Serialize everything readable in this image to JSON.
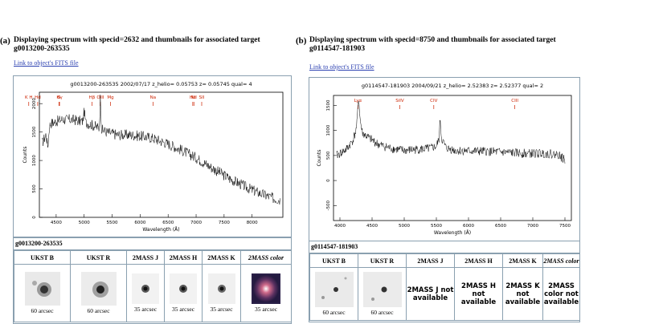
{
  "panels": [
    {
      "label": "(a)",
      "title_line1": "Displaying spectrum with specid=2632 and thumbnails for associated target",
      "title_line2": "g0013200-263535",
      "link": "Link to object's FITS file",
      "plot_header": "g0013200-263535 2002/07/17 z_helio= 0.05753 z= 0.05745 qual= 4",
      "target": "g0013200-263535",
      "line_marks": [
        "K H",
        "Hd",
        "G",
        "Hγ",
        "Hβ",
        "OIII",
        "Mg",
        "Na",
        "Hα",
        "NII",
        "SII"
      ],
      "y_ticks": [
        "0",
        "500",
        "1000",
        "1500",
        "2000"
      ],
      "x_ticks": [
        "4500",
        "5000",
        "5500",
        "6000",
        "6500",
        "7000",
        "7500",
        "8000"
      ],
      "ylabel": "Counts",
      "xlabel": "Wavelength (Å)",
      "thumb_headers": [
        "UKST B",
        "UKST R",
        "2MASS J",
        "2MASS H",
        "2MASS K",
        "2MASS color"
      ],
      "thumb_captions": [
        "60 arcsec",
        "60 arcsec",
        "35 arcsec",
        "35 arcsec",
        "35 arcsec",
        "35 arcsec"
      ]
    },
    {
      "label": "(b)",
      "title_line1": "Displaying spectrum with specid=8750 and thumbnails for associated target",
      "title_line2": "g0114547-181903",
      "link": "Link to object's FITS file",
      "plot_header": "g0114547-181903 2004/09/21 z_helio= 2.52383 z= 2.52377 qual= 2",
      "target": "g0114547-181903",
      "line_marks": [
        "Lyα",
        "SiIV",
        "CIV",
        "CIII"
      ],
      "y_ticks": [
        "-500",
        "0",
        "500",
        "1000",
        "1500"
      ],
      "x_ticks": [
        "4000",
        "4500",
        "5000",
        "5500",
        "6000",
        "6500",
        "7000",
        "7500"
      ],
      "ylabel": "Counts",
      "xlabel": "Wavelength (Å)",
      "thumb_headers": [
        "UKST B",
        "UKST R",
        "2MASS J",
        "2MASS H",
        "2MASS K",
        "2MASS color"
      ],
      "thumb_captions": [
        "60 arcsec",
        "60 arcsec"
      ],
      "not_available": [
        "2MASS J not available",
        "2MASS H not available",
        "2MASS K not available",
        "2MASS color not available"
      ]
    }
  ],
  "colors": {
    "axis_frame": "#8aa0b0",
    "line_marks": "#cc2200",
    "link": "#2a3fb0"
  },
  "chart_data": [
    {
      "type": "line",
      "title": "g0013200-263535 2002/07/17 z_helio= 0.05753 z= 0.05745 qual= 4",
      "xlabel": "Wavelength (Å)",
      "ylabel": "Counts",
      "xlim": [
        4200,
        8550
      ],
      "ylim": [
        0,
        2200
      ],
      "x": [
        4250,
        4400,
        4600,
        4800,
        5000,
        5200,
        5400,
        5600,
        5800,
        6000,
        6200,
        6400,
        6600,
        6800,
        7000,
        7200,
        7400,
        7600,
        7800,
        8000,
        8200,
        8400,
        8500
      ],
      "y": [
        1300,
        1650,
        1720,
        1720,
        1680,
        1600,
        1500,
        1450,
        1450,
        1430,
        1400,
        1330,
        1250,
        1150,
        1050,
        920,
        800,
        680,
        580,
        480,
        400,
        330,
        310
      ]
    },
    {
      "type": "line",
      "title": "g0114547-181903 2004/09/21 z_helio= 2.52383 z= 2.52377 qual= 2",
      "xlabel": "Wavelength (Å)",
      "ylabel": "Counts",
      "xlim": [
        3900,
        7600
      ],
      "ylim": [
        -800,
        1700
      ],
      "x": [
        3950,
        4100,
        4200,
        4250,
        4290,
        4350,
        4450,
        4600,
        4800,
        5000,
        5200,
        5400,
        5500,
        5560,
        5650,
        5800,
        6000,
        6300,
        6600,
        6900,
        7200,
        7400,
        7500
      ],
      "y": [
        500,
        620,
        800,
        1000,
        1380,
        950,
        850,
        720,
        640,
        600,
        620,
        640,
        680,
        900,
        650,
        600,
        590,
        580,
        560,
        540,
        540,
        520,
        400
      ]
    }
  ]
}
